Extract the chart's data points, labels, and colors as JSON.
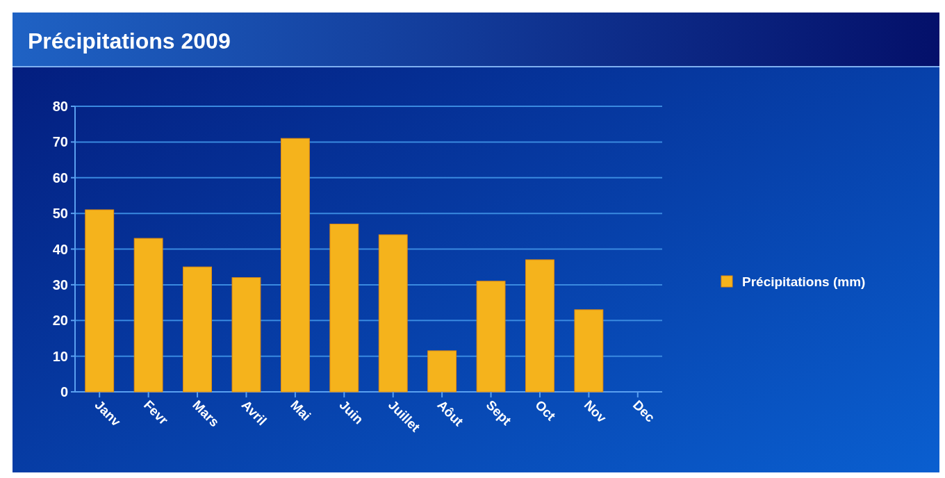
{
  "chart_data": {
    "type": "bar",
    "title": "Précipitations 2009",
    "categories": [
      "Janv",
      "Fevr",
      "Mars",
      "Avril",
      "Mai",
      "Juin",
      "Juillet",
      "Aôut",
      "Sept",
      "Oct",
      "Nov",
      "Dec"
    ],
    "series": [
      {
        "name": "Précipitations (mm)",
        "color": "#f5b31c",
        "values": [
          51,
          43,
          35,
          32,
          71,
          47,
          44,
          11.5,
          31,
          37,
          23,
          null
        ]
      }
    ],
    "ylim": [
      0,
      80
    ],
    "yticks": [
      0,
      10,
      20,
      30,
      40,
      50,
      60,
      70,
      80
    ],
    "grid": "y",
    "legend": "right"
  }
}
